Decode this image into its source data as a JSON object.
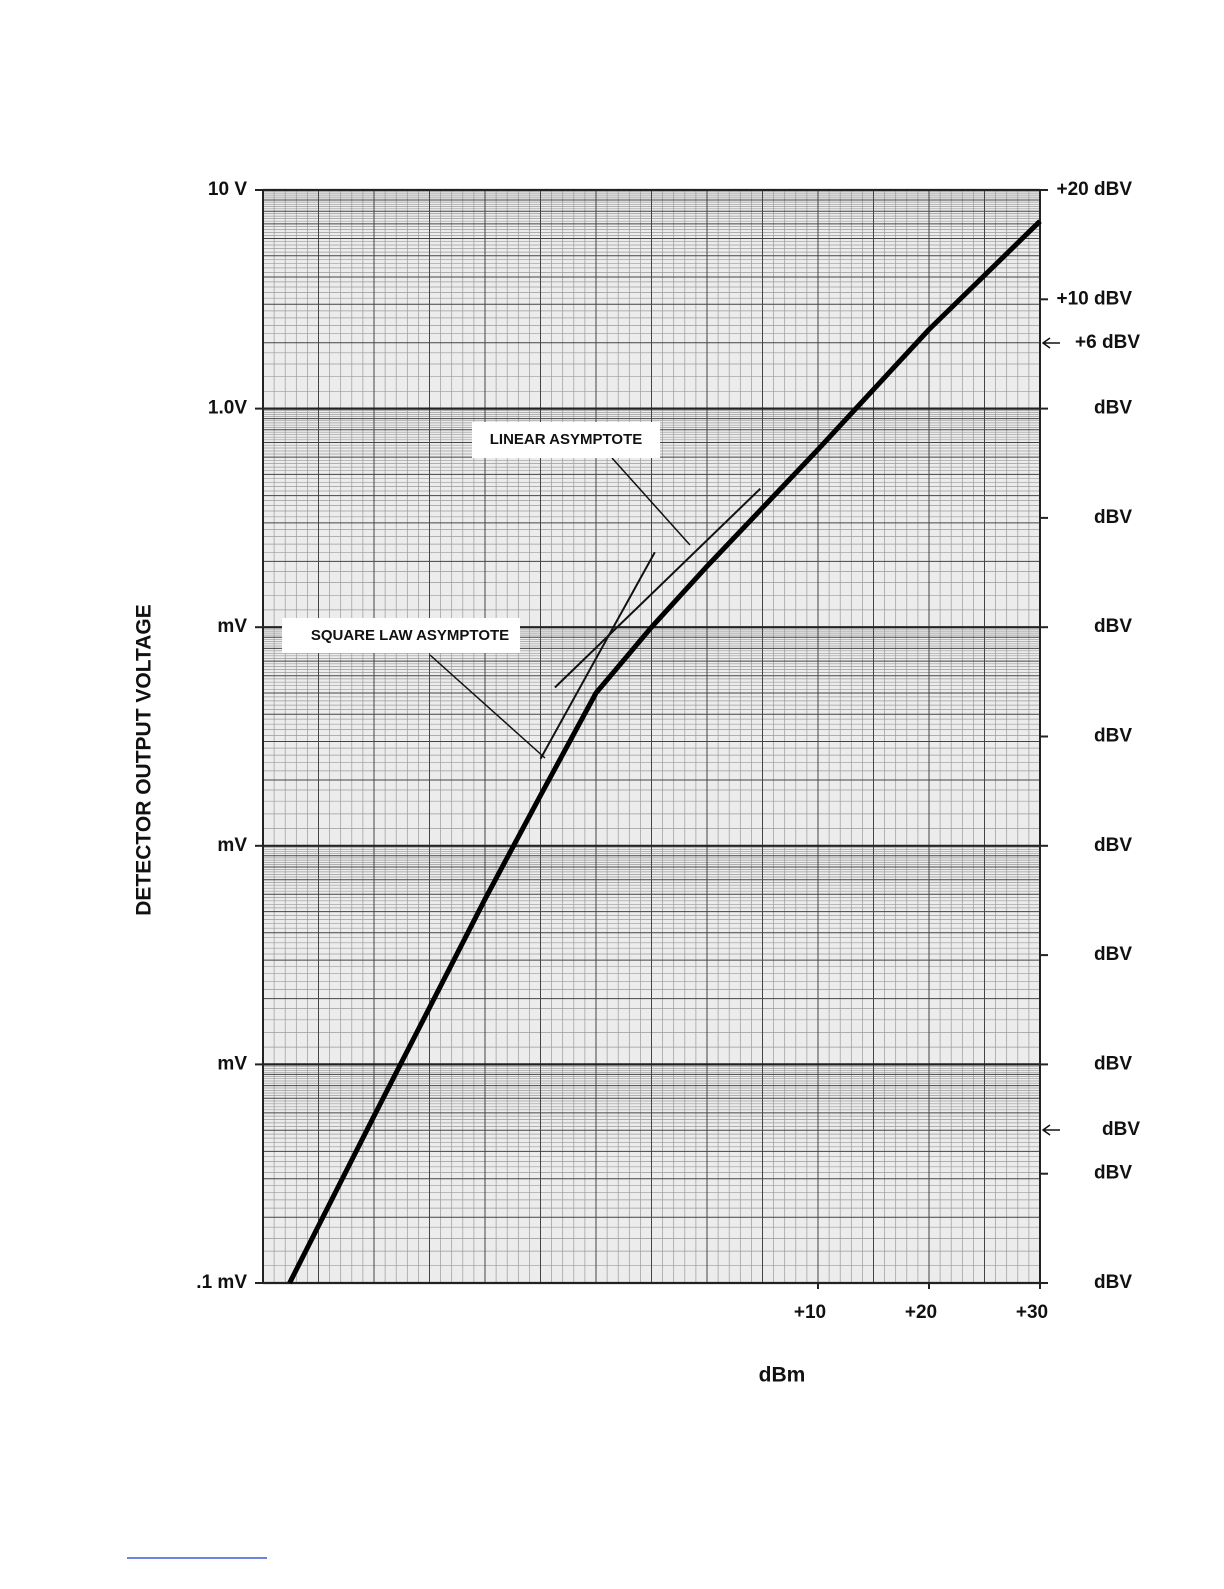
{
  "chart_data": {
    "type": "line",
    "y_label": "DETECTOR OUTPUT VOLTAGE",
    "x_label": "dBm",
    "xlim": [
      -40,
      30
    ],
    "xticks": [
      {
        "value": 10,
        "label": "+10"
      },
      {
        "value": 20,
        "label": "+20"
      },
      {
        "value": 30,
        "label": "+30"
      }
    ],
    "ylog": true,
    "ylim": [
      0.0001,
      10
    ],
    "yticks": [
      {
        "value": 10,
        "label": "10 V"
      },
      {
        "value": 1,
        "label": "1.0V"
      },
      {
        "value": 0.1,
        "label": "mV"
      },
      {
        "value": 0.01,
        "label": "mV"
      },
      {
        "value": 0.001,
        "label": "mV"
      },
      {
        "value": 0.0001,
        "label": ".1 mV"
      }
    ],
    "y2lim": [
      -80,
      20
    ],
    "y2ticks": [
      {
        "value": 20,
        "label": "+20 dBV"
      },
      {
        "value": 10,
        "label": "+10 dBV"
      },
      {
        "value": 6,
        "label": "+6 dBV",
        "arrow": true
      },
      {
        "value": 0,
        "label": "dBV"
      },
      {
        "value": -10,
        "label": "dBV"
      },
      {
        "value": -20,
        "label": "dBV"
      },
      {
        "value": -30,
        "label": "dBV"
      },
      {
        "value": -40,
        "label": "dBV"
      },
      {
        "value": -50,
        "label": "dBV"
      },
      {
        "value": -60,
        "label": "dBV"
      },
      {
        "value": -66,
        "label": "dBV",
        "arrow": true
      },
      {
        "value": -70,
        "label": "dBV"
      },
      {
        "value": -80,
        "label": "dBV"
      }
    ],
    "grid": true,
    "series": [
      {
        "color": "#000000",
        "x": [
          -37.6,
          -30,
          -20,
          -15,
          -10,
          -5,
          0,
          10,
          20,
          30
        ],
        "values": [
          0.0001,
          0.00058,
          0.0057,
          0.017,
          0.05,
          0.1,
          0.19,
          0.65,
          2.3,
          7.2
        ]
      }
    ],
    "asymptotes": [
      {
        "label": "LINEAR ASYMPTOTE",
        "x": [
          -13.7,
          4.8
        ],
        "values": [
          0.053,
          0.43
        ]
      },
      {
        "label": "SQUARE LAW ASYMPTOTE",
        "x": [
          -15.0,
          -4.7
        ],
        "values": [
          0.025,
          0.22
        ]
      }
    ]
  }
}
